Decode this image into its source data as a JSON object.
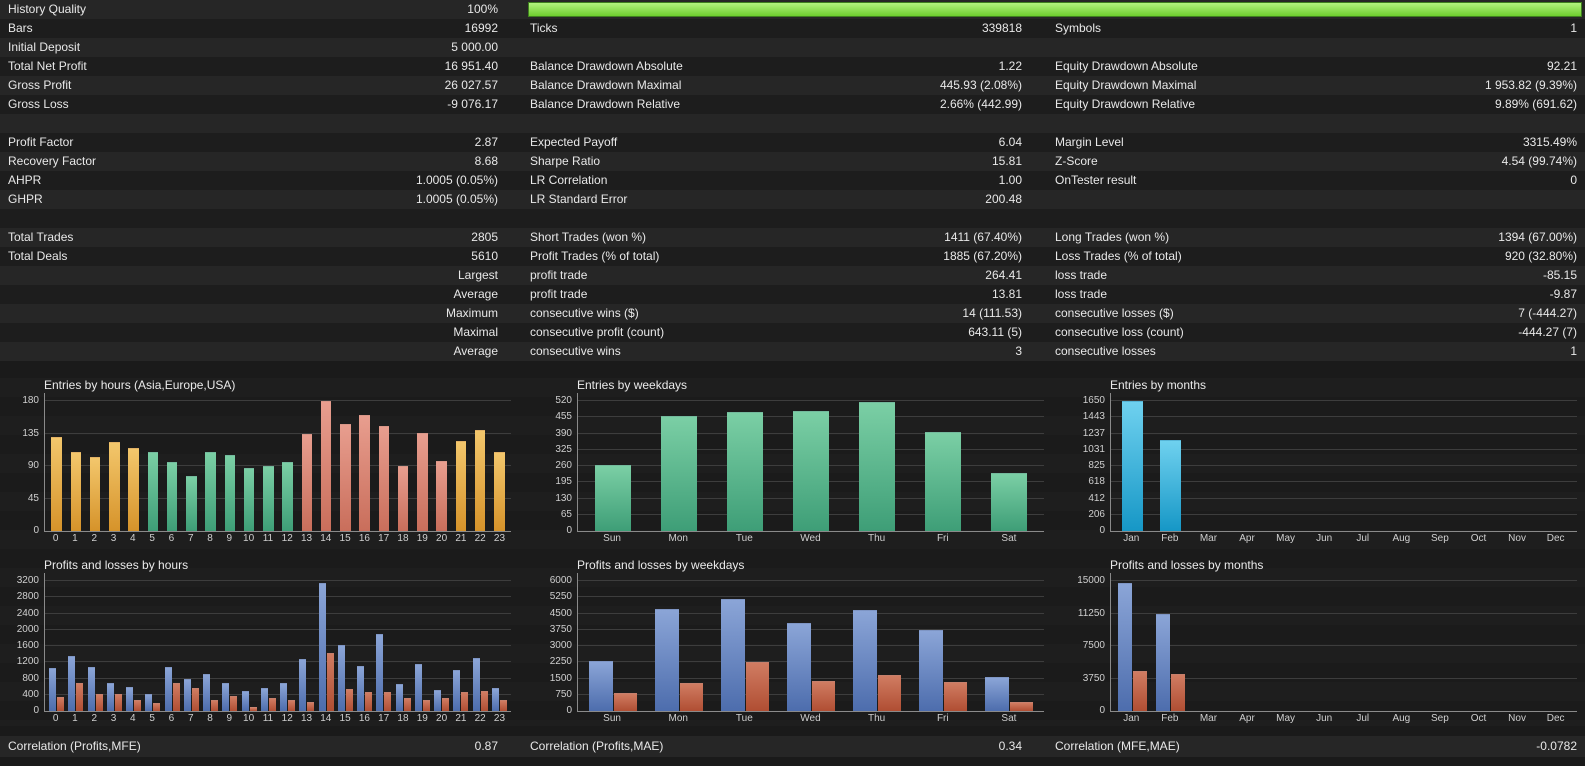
{
  "colors": {
    "page_bg": "#1a1a1a",
    "row_even": "#262626",
    "row_odd": "#1d1d1d",
    "text": "#e8e8e8",
    "tick_text": "#cfcfcf",
    "axis": "#8a8a8a",
    "gridline": "#3d3d3d",
    "progress_border": "#3f7f1f",
    "progress_fill_top": "#b2f37e",
    "progress_fill_bottom": "#6ecd2e"
  },
  "palette": {
    "gold": [
      "#f3c76c",
      "#d6932a"
    ],
    "green": [
      "#7bcfa5",
      "#3e9e77"
    ],
    "salmon": [
      "#e89e8f",
      "#c96e5b"
    ],
    "cyan": [
      "#6fd1ef",
      "#1697c6"
    ],
    "blue": [
      "#8ba5d7",
      "#4d6dad"
    ],
    "red": [
      "#d07c62",
      "#b04e33"
    ]
  },
  "stats": {
    "progress_row": 0,
    "rows": [
      [
        "History Quality",
        "100%",
        "",
        "",
        "",
        ""
      ],
      [
        "Bars",
        "16992",
        "Ticks",
        "339818",
        "Symbols",
        "1"
      ],
      [
        "Initial Deposit",
        "5 000.00",
        "",
        "",
        "",
        ""
      ],
      [
        "Total Net Profit",
        "16 951.40",
        "Balance Drawdown Absolute",
        "1.22",
        "Equity Drawdown Absolute",
        "92.21"
      ],
      [
        "Gross Profit",
        "26 027.57",
        "Balance Drawdown Maximal",
        "445.93 (2.08%)",
        "Equity Drawdown Maximal",
        "1 953.82 (9.39%)"
      ],
      [
        "Gross Loss",
        "-9 076.17",
        "Balance Drawdown Relative",
        "2.66% (442.99)",
        "Equity Drawdown Relative",
        "9.89% (691.62)"
      ],
      [
        "",
        "",
        "",
        "",
        "",
        ""
      ],
      [
        "Profit Factor",
        "2.87",
        "Expected Payoff",
        "6.04",
        "Margin Level",
        "3315.49%"
      ],
      [
        "Recovery Factor",
        "8.68",
        "Sharpe Ratio",
        "15.81",
        "Z-Score",
        "4.54 (99.74%)"
      ],
      [
        "AHPR",
        "1.0005 (0.05%)",
        "LR Correlation",
        "1.00",
        "OnTester result",
        "0"
      ],
      [
        "GHPR",
        "1.0005 (0.05%)",
        "LR Standard Error",
        "200.48",
        "",
        ""
      ],
      [
        "",
        "",
        "",
        "",
        "",
        ""
      ],
      [
        "Total Trades",
        "2805",
        "Short Trades (won %)",
        "1411 (67.40%)",
        "Long Trades (won %)",
        "1394 (67.00%)"
      ],
      [
        "Total Deals",
        "5610",
        "Profit Trades (% of total)",
        "1885 (67.20%)",
        "Loss Trades (% of total)",
        "920 (32.80%)"
      ],
      [
        "",
        "Largest",
        "profit trade",
        "264.41",
        "loss trade",
        "-85.15"
      ],
      [
        "",
        "Average",
        "profit trade",
        "13.81",
        "loss trade",
        "-9.87"
      ],
      [
        "",
        "Maximum",
        "consecutive wins ($)",
        "14 (111.53)",
        "consecutive losses ($)",
        "7 (-444.27)"
      ],
      [
        "",
        "Maximal",
        "consecutive profit (count)",
        "643.11 (5)",
        "consecutive loss (count)",
        "-444.27 (7)"
      ],
      [
        "",
        "Average",
        "consecutive wins",
        "3",
        "consecutive losses",
        "1"
      ]
    ]
  },
  "chart_data": [
    {
      "id": "entries-by-hours",
      "type": "bar",
      "title": "Entries by hours (Asia,Europe,USA)",
      "ylim": 180,
      "yticks": [
        0,
        45,
        90,
        135,
        180
      ],
      "categories": [
        "0",
        "1",
        "2",
        "3",
        "4",
        "5",
        "6",
        "7",
        "8",
        "9",
        "10",
        "11",
        "12",
        "13",
        "14",
        "15",
        "16",
        "17",
        "18",
        "19",
        "20",
        "21",
        "22",
        "23"
      ],
      "bar_colors": [
        "gold",
        "gold",
        "gold",
        "gold",
        "gold",
        "green",
        "green",
        "green",
        "green",
        "green",
        "green",
        "green",
        "green",
        "salmon",
        "salmon",
        "salmon",
        "salmon",
        "salmon",
        "salmon",
        "salmon",
        "salmon",
        "gold",
        "gold",
        "gold"
      ],
      "series": [
        {
          "name": "entries",
          "values": [
            130,
            110,
            103,
            123,
            115,
            110,
            95,
            76,
            110,
            105,
            87,
            90,
            95,
            134,
            180,
            148,
            160,
            145,
            90,
            135,
            97,
            124,
            140,
            110
          ]
        }
      ]
    },
    {
      "id": "entries-by-weekdays",
      "type": "bar",
      "title": "Entries by weekdays",
      "ylim": 520,
      "yticks": [
        0,
        65,
        130,
        195,
        260,
        325,
        390,
        455,
        520
      ],
      "categories": [
        "Sun",
        "Mon",
        "Tue",
        "Wed",
        "Thu",
        "Fri",
        "Sat"
      ],
      "series": [
        {
          "name": "entries",
          "color": "green",
          "values": [
            265,
            460,
            475,
            478,
            515,
            395,
            230
          ]
        }
      ]
    },
    {
      "id": "entries-by-months",
      "type": "bar",
      "title": "Entries by months",
      "ylim": 1650,
      "yticks": [
        0,
        206,
        412,
        618,
        825,
        1031,
        1237,
        1443,
        1650
      ],
      "categories": [
        "Jan",
        "Feb",
        "Mar",
        "Apr",
        "May",
        "Jun",
        "Jul",
        "Aug",
        "Sep",
        "Oct",
        "Nov",
        "Dec"
      ],
      "series": [
        {
          "name": "entries",
          "color": "cyan",
          "values": [
            1650,
            1155,
            0,
            0,
            0,
            0,
            0,
            0,
            0,
            0,
            0,
            0
          ]
        }
      ]
    },
    {
      "id": "profits-losses-by-hours",
      "type": "bar",
      "title": "Profits and losses by hours",
      "ylim": 3200,
      "yticks": [
        0,
        400,
        800,
        1200,
        1600,
        2000,
        2400,
        2800,
        3200
      ],
      "categories": [
        "0",
        "1",
        "2",
        "3",
        "4",
        "5",
        "6",
        "7",
        "8",
        "9",
        "10",
        "11",
        "12",
        "13",
        "14",
        "15",
        "16",
        "17",
        "18",
        "19",
        "20",
        "21",
        "22",
        "23"
      ],
      "series": [
        {
          "name": "profits",
          "color": "blue",
          "values": [
            1050,
            1350,
            1080,
            700,
            600,
            430,
            1080,
            780,
            900,
            700,
            480,
            560,
            700,
            1270,
            3160,
            1620,
            1100,
            1900,
            660,
            1160,
            520,
            1000,
            1300,
            560
          ]
        },
        {
          "name": "losses",
          "color": "red",
          "values": [
            350,
            680,
            430,
            420,
            260,
            200,
            680,
            560,
            260,
            380,
            110,
            320,
            260,
            210,
            1430,
            530,
            470,
            460,
            310,
            260,
            310,
            470,
            480,
            260
          ]
        }
      ]
    },
    {
      "id": "profits-losses-by-weekdays",
      "type": "bar",
      "title": "Profits and losses by weekdays",
      "ylim": 6000,
      "yticks": [
        0,
        750,
        1500,
        2250,
        3000,
        3750,
        4500,
        5250,
        6000
      ],
      "categories": [
        "Sun",
        "Mon",
        "Tue",
        "Wed",
        "Thu",
        "Fri",
        "Sat"
      ],
      "series": [
        {
          "name": "profits",
          "color": "blue",
          "values": [
            2300,
            4700,
            5150,
            4050,
            4650,
            3750,
            1550
          ]
        },
        {
          "name": "losses",
          "color": "red",
          "values": [
            850,
            1300,
            2250,
            1400,
            1650,
            1350,
            400
          ]
        }
      ]
    },
    {
      "id": "profits-losses-by-months",
      "type": "bar",
      "title": "Profits and losses by months",
      "ylim": 15000,
      "yticks": [
        0,
        3750,
        7500,
        11250,
        15000
      ],
      "categories": [
        "Jan",
        "Feb",
        "Mar",
        "Apr",
        "May",
        "Jun",
        "Jul",
        "Aug",
        "Sep",
        "Oct",
        "Nov",
        "Dec"
      ],
      "series": [
        {
          "name": "profits",
          "color": "blue",
          "values": [
            14800,
            11200,
            0,
            0,
            0,
            0,
            0,
            0,
            0,
            0,
            0,
            0
          ]
        },
        {
          "name": "losses",
          "color": "red",
          "values": [
            4650,
            4300,
            0,
            0,
            0,
            0,
            0,
            0,
            0,
            0,
            0,
            0
          ]
        }
      ]
    }
  ],
  "footer": {
    "items": [
      {
        "label": "Correlation (Profits,MFE)",
        "value": "0.87"
      },
      {
        "label": "Correlation (Profits,MAE)",
        "value": "0.34"
      },
      {
        "label": "Correlation (MFE,MAE)",
        "value": "-0.0782"
      }
    ]
  }
}
